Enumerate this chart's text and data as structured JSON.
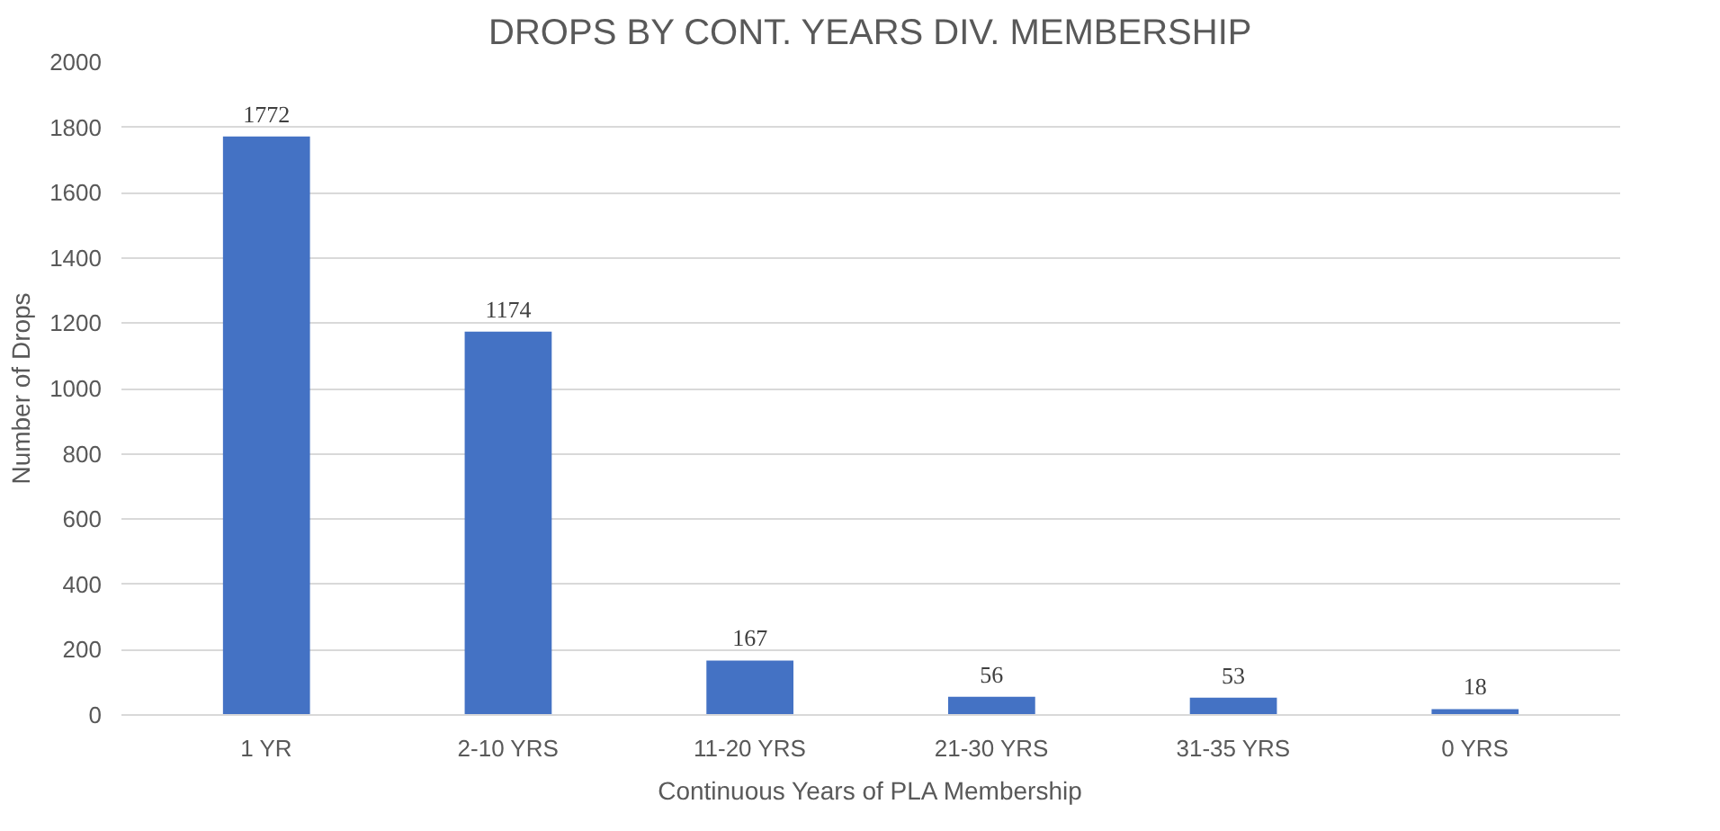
{
  "chart_data": {
    "type": "bar",
    "title": "DROPS BY CONT. YEARS DIV. MEMBERSHIP",
    "xlabel": "Continuous Years of PLA Membership",
    "ylabel": "Number of Drops",
    "categories": [
      "1 YR",
      "2-10 YRS",
      "11-20 YRS",
      "21-30 YRS",
      "31-35 YRS",
      "0 YRS"
    ],
    "values": [
      1772,
      1174,
      167,
      56,
      53,
      18
    ],
    "color": "#4472c4",
    "ylim": [
      0,
      2000
    ],
    "yticks": [
      0,
      200,
      400,
      600,
      800,
      1000,
      1200,
      1400,
      1600,
      1800,
      2000
    ],
    "grid": "y",
    "data_labels": true
  }
}
